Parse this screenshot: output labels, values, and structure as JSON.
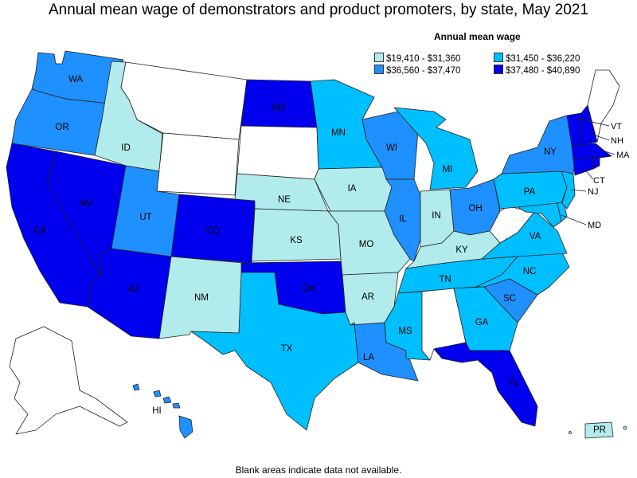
{
  "title": "Annual mean wage of demonstrators and product promoters, by state, May 2021",
  "legend": {
    "title": "Annual mean wage",
    "items": [
      {
        "range": "$19,410 - $31,360",
        "color": "#b2ebeb"
      },
      {
        "range": "$31,450 - $36,220",
        "color": "#00bfff"
      },
      {
        "range": "$36,560 - $37,470",
        "color": "#1e90ff"
      },
      {
        "range": "$37,480 - $40,890",
        "color": "#0000ee"
      }
    ]
  },
  "footnote": "Blank areas indicate data not available.",
  "colors": {
    "none": "#ffffff",
    "c1": "#b2ebeb",
    "c2": "#00bfff",
    "c3": "#1e90ff",
    "c4": "#0000ee"
  },
  "states": {
    "WA": {
      "label": "WA",
      "bin": "c3"
    },
    "OR": {
      "label": "OR",
      "bin": "c3"
    },
    "CA": {
      "label": "CA",
      "bin": "c4"
    },
    "NV": {
      "label": "NV",
      "bin": "c4"
    },
    "ID": {
      "label": "ID",
      "bin": "c1"
    },
    "MT": {
      "label": "",
      "bin": "none"
    },
    "WY": {
      "label": "",
      "bin": "none"
    },
    "UT": {
      "label": "UT",
      "bin": "c3"
    },
    "AZ": {
      "label": "AZ",
      "bin": "c4"
    },
    "CO": {
      "label": "CO",
      "bin": "c4"
    },
    "NM": {
      "label": "NM",
      "bin": "c1"
    },
    "ND": {
      "label": "ND",
      "bin": "c4"
    },
    "SD": {
      "label": "",
      "bin": "none"
    },
    "NE": {
      "label": "NE",
      "bin": "c1"
    },
    "KS": {
      "label": "KS",
      "bin": "c1"
    },
    "OK": {
      "label": "OK",
      "bin": "c4"
    },
    "TX": {
      "label": "TX",
      "bin": "c2"
    },
    "MN": {
      "label": "MN",
      "bin": "c2"
    },
    "IA": {
      "label": "IA",
      "bin": "c1"
    },
    "MO": {
      "label": "MO",
      "bin": "c1"
    },
    "AR": {
      "label": "AR",
      "bin": "c1"
    },
    "LA": {
      "label": "LA",
      "bin": "c3"
    },
    "WI": {
      "label": "WI",
      "bin": "c3"
    },
    "IL": {
      "label": "IL",
      "bin": "c3"
    },
    "MI": {
      "label": "MI",
      "bin": "c2"
    },
    "IN": {
      "label": "IN",
      "bin": "c1"
    },
    "OH": {
      "label": "OH",
      "bin": "c3"
    },
    "KY": {
      "label": "KY",
      "bin": "c1"
    },
    "TN": {
      "label": "TN",
      "bin": "c2"
    },
    "MS": {
      "label": "MS",
      "bin": "c2"
    },
    "AL": {
      "label": "",
      "bin": "none"
    },
    "GA": {
      "label": "GA",
      "bin": "c2"
    },
    "FL": {
      "label": "FL",
      "bin": "c4"
    },
    "SC": {
      "label": "SC",
      "bin": "c3"
    },
    "NC": {
      "label": "NC",
      "bin": "c2"
    },
    "VA": {
      "label": "VA",
      "bin": "c2"
    },
    "WV": {
      "label": "",
      "bin": "none"
    },
    "PA": {
      "label": "PA",
      "bin": "c2"
    },
    "NY": {
      "label": "NY",
      "bin": "c3"
    },
    "NJ": {
      "label": "NJ",
      "bin": "c2"
    },
    "DE": {
      "label": "",
      "bin": "c2"
    },
    "MD": {
      "label": "MD",
      "bin": "c2"
    },
    "CT": {
      "label": "CT",
      "bin": "c4"
    },
    "RI": {
      "label": "",
      "bin": "c4"
    },
    "MA": {
      "label": "MA",
      "bin": "c4"
    },
    "VT": {
      "label": "VT",
      "bin": "c4"
    },
    "NH": {
      "label": "NH",
      "bin": "c4"
    },
    "ME": {
      "label": "",
      "bin": "none"
    },
    "AK": {
      "label": "",
      "bin": "none"
    },
    "HI": {
      "label": "HI",
      "bin": "c3"
    },
    "PR": {
      "label": "PR",
      "bin": "c1"
    }
  }
}
